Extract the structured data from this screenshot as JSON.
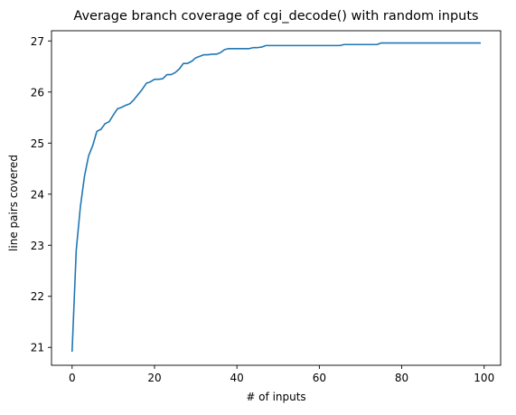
{
  "chart_data": {
    "type": "line",
    "title": "Average branch coverage of cgi_decode() with random inputs",
    "xlabel": "# of inputs",
    "ylabel": "line pairs covered",
    "xlim": [
      -5,
      104
    ],
    "ylim": [
      20.65,
      27.2
    ],
    "xticks": [
      0,
      20,
      40,
      60,
      80,
      100
    ],
    "yticks": [
      21,
      22,
      23,
      24,
      25,
      26,
      27
    ],
    "grid": false,
    "legend": "none",
    "colors": {
      "line": "#1f77b4",
      "axes": "#000000"
    },
    "series": [
      {
        "x": [
          0,
          1,
          2,
          3,
          4,
          5,
          6,
          7,
          8,
          9,
          10,
          11,
          12,
          13,
          14,
          15,
          16,
          17,
          18,
          19,
          20,
          21,
          22,
          23,
          24,
          25,
          26,
          27,
          28,
          29,
          30,
          31,
          32,
          33,
          34,
          35,
          36,
          37,
          38,
          39,
          40,
          41,
          42,
          43,
          44,
          45,
          46,
          47,
          48,
          49,
          50,
          51,
          52,
          53,
          54,
          55,
          56,
          57,
          58,
          59,
          60,
          61,
          62,
          63,
          64,
          65,
          66,
          67,
          68,
          69,
          70,
          71,
          72,
          73,
          74,
          75,
          76,
          77,
          78,
          79,
          80,
          81,
          82,
          83,
          84,
          85,
          86,
          87,
          88,
          89,
          90,
          91,
          92,
          93,
          94,
          95,
          96,
          97,
          98,
          99
        ],
        "values": [
          20.93,
          22.9,
          23.75,
          24.35,
          24.75,
          24.95,
          25.23,
          25.27,
          25.38,
          25.42,
          25.55,
          25.67,
          25.7,
          25.74,
          25.77,
          25.85,
          25.95,
          26.05,
          26.17,
          26.2,
          26.25,
          26.25,
          26.26,
          26.34,
          26.34,
          26.38,
          26.45,
          26.56,
          26.56,
          26.6,
          26.67,
          26.7,
          26.73,
          26.73,
          26.74,
          26.74,
          26.77,
          26.83,
          26.85,
          26.85,
          26.85,
          26.85,
          26.85,
          26.85,
          26.87,
          26.87,
          26.88,
          26.91,
          26.91,
          26.91,
          26.91,
          26.91,
          26.91,
          26.91,
          26.91,
          26.91,
          26.91,
          26.91,
          26.91,
          26.91,
          26.91,
          26.91,
          26.91,
          26.91,
          26.91,
          26.91,
          26.93,
          26.93,
          26.93,
          26.93,
          26.93,
          26.93,
          26.93,
          26.93,
          26.93,
          26.96,
          26.96,
          26.96,
          26.96,
          26.96,
          26.96,
          26.96,
          26.96,
          26.96,
          26.96,
          26.96,
          26.96,
          26.96,
          26.96,
          26.96,
          26.96,
          26.96,
          26.96,
          26.96,
          26.96,
          26.96,
          26.96,
          26.96,
          26.96,
          26.96
        ]
      }
    ]
  }
}
